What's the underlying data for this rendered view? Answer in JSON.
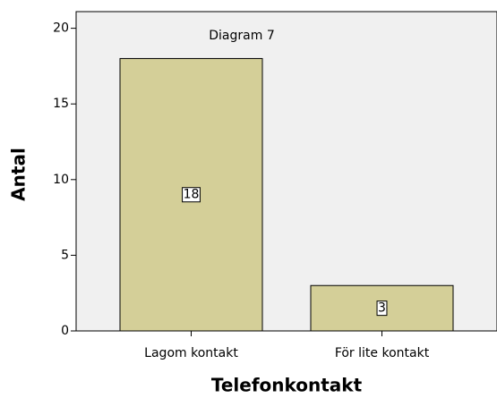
{
  "chart_data": {
    "type": "bar",
    "title": "Diagram 7",
    "categories": [
      "Lagom kontakt",
      "För lite kontakt"
    ],
    "values": [
      18,
      3
    ],
    "color": "#d4cf98",
    "xlabel": "Telefonkontakt",
    "ylabel": "Antal",
    "ylim": [
      0,
      21.1
    ],
    "yticks": [
      0,
      5,
      10,
      15,
      20
    ],
    "grid": false
  }
}
